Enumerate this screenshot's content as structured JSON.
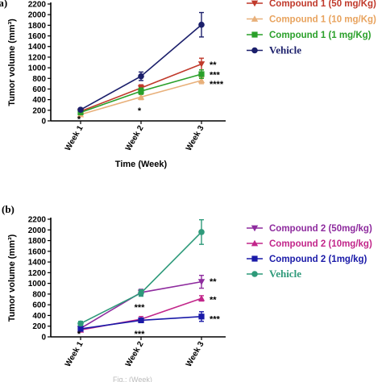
{
  "panel_a": {
    "panel_label": "(a)",
    "legend": [
      {
        "label": "Compound 1 (50 mg/Kg)",
        "color": "#c0392b",
        "text_color": "#c0392b",
        "marker": "triangle-down",
        "serif": false
      },
      {
        "label": "Compound 1 (10 mg/Kg)",
        "color": "#e8b07a",
        "text_color": "#e8a35e",
        "marker": "triangle-up",
        "serif": false
      },
      {
        "label": "Compound 1 (1 mg/Kg)",
        "color": "#2aa02a",
        "text_color": "#2aa02a",
        "marker": "square",
        "serif": false
      },
      {
        "label": "Vehicle",
        "color": "#1b1f6b",
        "text_color": "#1b1f6b",
        "marker": "circle",
        "serif": true
      }
    ],
    "annotations": [
      {
        "text": "**",
        "x": "Week 3",
        "y": 1060
      },
      {
        "text": "***",
        "x": "Week 3",
        "y": 870
      },
      {
        "text": "****",
        "x": "Week 3",
        "y": 700
      },
      {
        "text": "*",
        "x": "Week 2",
        "y": 200
      },
      {
        "text": "*",
        "x": "Week 1",
        "y": 40
      }
    ]
  },
  "panel_b": {
    "panel_label": "(b)",
    "legend": [
      {
        "label": "Compound 2 (50mg/kg)",
        "color": "#8e2b9e",
        "text_color": "#8e2b9e",
        "marker": "triangle-down",
        "serif": false
      },
      {
        "label": "Compound 2 (10mg/kg)",
        "color": "#c2268a",
        "text_color": "#c2268a",
        "marker": "triangle-up",
        "serif": false
      },
      {
        "label": "Compound 2 (1mg/kg)",
        "color": "#1a1aa8",
        "text_color": "#1a1aa8",
        "marker": "square",
        "serif": false
      },
      {
        "label": "Vehicle",
        "color": "#2e9a7a",
        "text_color": "#2e9a7a",
        "marker": "circle",
        "serif": true
      }
    ],
    "annotations": [
      {
        "text": "**",
        "x": "Week 3",
        "y": 1040
      },
      {
        "text": "**",
        "x": "Week 3",
        "y": 700
      },
      {
        "text": "***",
        "x": "Week 3",
        "y": 340
      },
      {
        "text": "***",
        "x": "Week 2",
        "y": 560
      },
      {
        "text": "***",
        "x": "Week 2",
        "y": 60
      },
      {
        "text": "*",
        "x": "Week 1",
        "y": 60
      }
    ]
  },
  "caption": "Fig.: (Week)",
  "chart_data": [
    {
      "type": "line",
      "title": "",
      "xlabel": "Time (Week)",
      "ylabel": "Tumor volume (mm³)",
      "categories": [
        "Week 1",
        "Week 2",
        "Week 3"
      ],
      "ylim": [
        0,
        2200
      ],
      "yticks": [
        0,
        200,
        400,
        600,
        800,
        1000,
        1200,
        1400,
        1600,
        1800,
        2000,
        2200
      ],
      "series": [
        {
          "name": "Compound 1 (50 mg/Kg)",
          "values": [
            180,
            620,
            1070
          ],
          "errors": [
            20,
            60,
            110
          ]
        },
        {
          "name": "Compound 1 (10 mg/Kg)",
          "values": [
            120,
            450,
            760
          ],
          "errors": [
            20,
            50,
            60
          ]
        },
        {
          "name": "Compound 1 (1 mg/Kg)",
          "values": [
            160,
            560,
            880
          ],
          "errors": [
            20,
            60,
            80
          ]
        },
        {
          "name": "Vehicle",
          "values": [
            210,
            840,
            1810
          ],
          "errors": [
            30,
            80,
            230
          ]
        }
      ]
    },
    {
      "type": "line",
      "title": "",
      "xlabel": "",
      "ylabel": "Tumor volume (mm³)",
      "categories": [
        "Week 1",
        "Week 2",
        "Week 3"
      ],
      "ylim": [
        0,
        2200
      ],
      "yticks": [
        0,
        200,
        400,
        600,
        800,
        1000,
        1200,
        1400,
        1600,
        1800,
        2000,
        2200
      ],
      "series": [
        {
          "name": "Compound 2 (50mg/kg)",
          "values": [
            160,
            830,
            1030
          ],
          "errors": [
            30,
            60,
            120
          ]
        },
        {
          "name": "Compound 2 (10mg/kg)",
          "values": [
            130,
            330,
            720
          ],
          "errors": [
            30,
            50,
            50
          ]
        },
        {
          "name": "Compound 2 (1mg/kg)",
          "values": [
            150,
            310,
            380
          ],
          "errors": [
            30,
            40,
            90
          ]
        },
        {
          "name": "Vehicle",
          "values": [
            250,
            820,
            1960
          ],
          "errors": [
            40,
            60,
            230
          ]
        }
      ]
    }
  ]
}
